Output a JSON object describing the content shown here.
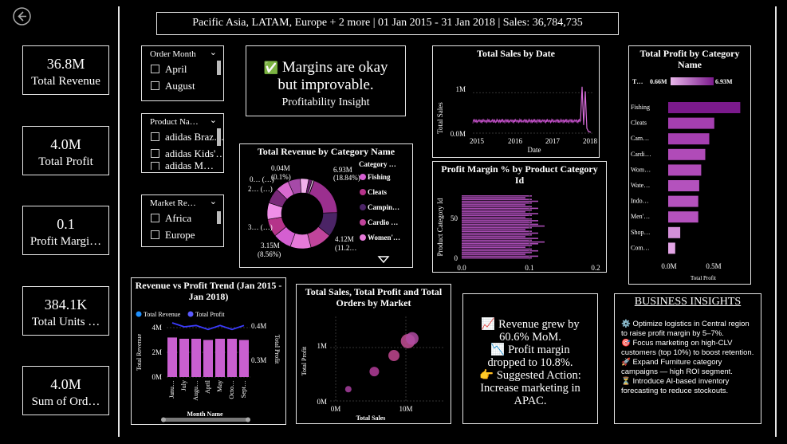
{
  "header": {
    "filter_text": "Pacific Asia, LATAM, Europe + 2 more | 01 Jan 2015 - 31 Jan 2018 | Sales: 36,784,735"
  },
  "back_icon": "circle-arrow-left-icon",
  "kpis": [
    {
      "value": "36.8M",
      "label": "Total Revenue"
    },
    {
      "value": "4.0M",
      "label": "Total Profit"
    },
    {
      "value": "0.1",
      "label": "Profit Margi…"
    },
    {
      "value": "384.1K",
      "label": "Total Units …"
    },
    {
      "value": "4.0M",
      "label": "Sum of Ord…"
    }
  ],
  "slicers": {
    "order_month": {
      "title": "Order Month",
      "items": [
        "April",
        "August"
      ]
    },
    "product_name": {
      "title": "Product Na…",
      "items": [
        "adidas Braz…",
        "adidas Kids'…",
        "adidas M…"
      ]
    },
    "market_region": {
      "title": "Market Re…",
      "items": [
        "Africa",
        "Europe"
      ]
    }
  },
  "insight_card": {
    "icon": "✅",
    "headline_line1": "Margins are okay",
    "headline_line2": "but improvable.",
    "subtitle": "Profitability Insight"
  },
  "sales_by_date": {
    "title": "Total Sales by Date",
    "xlabel": "Date",
    "ylabel": "Total Sales",
    "y_ticks": [
      "1M",
      "0.0M"
    ],
    "x_ticks": [
      "2015",
      "2016",
      "2017",
      "2018"
    ]
  },
  "profit_by_category": {
    "title": "Total Profit by Category Name",
    "legend_label": "T…",
    "legend_min": "0.66M",
    "legend_max": "6.93M",
    "xlabel": "Total Profit",
    "x_ticks": [
      "0.0M",
      "0.5M"
    ]
  },
  "revenue_by_category": {
    "title": "Total Revenue by Category Name",
    "legend_title": "Category …",
    "legend": [
      {
        "name": "Fishing",
        "color": "#d45fd1"
      },
      {
        "name": "Cleats",
        "color": "#b5338a"
      },
      {
        "name": "Campin…",
        "color": "#4b2466"
      },
      {
        "name": "Cardio …",
        "color": "#c0449b"
      },
      {
        "name": "Women'…",
        "color": "#e57ad8"
      }
    ],
    "labels": {
      "top_value": "6.93M",
      "top_pct": "(18.84%)",
      "right_value": "4.12M",
      "right_pct": "(11.2…",
      "bottom_value": "3.15M",
      "bottom_pct": "(8.56%)",
      "small_value": "0.04M",
      "small_pct": "(0.1%)",
      "left_a": "0… (…)",
      "left_b": "2… (…)",
      "left_c": "3… (…)"
    },
    "more_icon": "triangle-down-icon"
  },
  "margin_by_product": {
    "title": "Profit Margin % by Product Category Id",
    "ylabel": "Product Category Id",
    "y_ticks": [
      "50",
      "0"
    ],
    "x_ticks": [
      "0.0",
      "0.1",
      "0.2"
    ]
  },
  "trend": {
    "title": "Revenue vs Profit Trend (Jan 2015 - Jan 2018)",
    "legend": [
      {
        "name": "Total Revenue",
        "color": "#1e90ff"
      },
      {
        "name": "Total Profit",
        "color": "#5a5aff"
      }
    ],
    "ylabel_left": "Total Revenue",
    "ylabel_right": "Total Profit",
    "y_left_ticks": [
      "4M",
      "2M",
      "0M"
    ],
    "y_right_ticks": [
      "0.4M",
      "0.3M"
    ],
    "xlabel": "Month Name",
    "x_ticks": [
      "Janu…",
      "July",
      "Augu…",
      "April",
      "May",
      "Octo…",
      "Sept…"
    ]
  },
  "market_scatter": {
    "title": "Total Sales, Total Profit and Total Orders by Market",
    "xlabel": "Total Sales",
    "ylabel": "Total Profit",
    "x_ticks": [
      "0M",
      "10M"
    ],
    "y_ticks": [
      "1M",
      "0M"
    ]
  },
  "growth_card": {
    "lines": [
      "📈 Revenue grew by",
      "60.6% MoM.",
      "📉 Profit margin",
      "dropped to 10.8%.",
      "👉 Suggested Action:",
      "Increase marketing in",
      "APAC."
    ]
  },
  "business_insights": {
    "title": "BUSINESS INSIGHTS",
    "items": [
      "⚙️ Optimize logistics in Central region to raise profit margin by 5–7%.",
      "🎯 Focus marketing on high-CLV customers (top 10%) to boost retention.",
      "🚀 Expand Furniture category campaigns — high ROI segment.",
      "⏳ Introduce AI-based inventory forecasting to reduce stockouts."
    ]
  },
  "chart_data": [
    {
      "type": "line",
      "title": "Total Sales by Date",
      "x_range": [
        "2015-01",
        "2018-01"
      ],
      "ylim": [
        0,
        1500000
      ],
      "baseline_value": 300000,
      "spike_value": 1150000
    },
    {
      "type": "bar",
      "title": "Total Profit by Category Name",
      "orientation": "horizontal",
      "categories": [
        "Fishing",
        "Cleats",
        "Cam…",
        "Cardi…",
        "Wom…",
        "Wate…",
        "Indo…",
        "Men'…",
        "Shop…",
        "Com…"
      ],
      "values": [
        0.72,
        0.46,
        0.41,
        0.37,
        0.33,
        0.31,
        0.3,
        0.3,
        0.12,
        0.07
      ],
      "xlim": [
        0,
        0.9
      ],
      "colors": [
        "#7b1a8c",
        "#a53fb0",
        "#a53fb0",
        "#b04bb8",
        "#b04bb8",
        "#b452bd",
        "#b452bd",
        "#b452bd",
        "#d38fd8",
        "#e3a5e6"
      ]
    },
    {
      "type": "pie",
      "title": "Total Revenue by Category Name",
      "values": [
        6.93,
        4.12,
        3.7,
        3.5,
        3.15,
        3.0,
        2.8,
        2.6,
        2.3,
        2.1,
        1.4,
        0.6,
        0.3,
        0.04
      ],
      "colors": [
        "#9b2f8f",
        "#4b2466",
        "#c0449b",
        "#e57ad8",
        "#d45fd1",
        "#b5338a",
        "#f08fe8",
        "#7a2a7a",
        "#d96ad0",
        "#a64aa8",
        "#f2b0ec",
        "#6a1f6e",
        "#e8c0e8",
        "#ffffff"
      ]
    },
    {
      "type": "bar",
      "title": "Profit Margin % by Product Category Id",
      "orientation": "horizontal",
      "ylim": [
        0,
        76
      ],
      "xlim": [
        0,
        0.21
      ],
      "values": [
        0.11,
        0.1,
        0.11,
        0.12,
        0.11,
        0.1,
        0.11,
        0.12,
        0.11,
        0.1,
        0.12,
        0.11,
        0.1,
        0.11,
        0.12,
        0.11,
        0.12,
        0.13,
        0.11,
        0.1,
        0.11,
        0.12,
        0.11,
        0.1,
        0.12,
        0.11,
        0.13,
        0.12,
        0.11,
        0.1,
        0.11,
        0.12,
        0.11,
        0.1,
        0.12,
        0.11
      ]
    },
    {
      "type": "bar",
      "title": "Revenue vs Profit Trend (Jan 2015 - Jan 2018)",
      "categories": [
        "Janu…",
        "July",
        "Augu…",
        "April",
        "May",
        "Octo…",
        "Sept…"
      ],
      "series": [
        {
          "name": "Total Revenue",
          "values": [
            3.2,
            3.1,
            3.1,
            3.0,
            3.1,
            3.1,
            3.0
          ]
        },
        {
          "name": "Total Profit",
          "values": [
            0.37,
            0.355,
            0.36,
            0.345,
            0.36,
            0.345,
            0.36
          ]
        }
      ],
      "ylim": [
        0,
        4
      ],
      "y2lim": [
        0.25,
        0.4
      ]
    },
    {
      "type": "scatter",
      "title": "Total Sales, Total Profit and Total Orders by Market",
      "points": [
        {
          "x": 1.8,
          "y": 0.22,
          "size": 4
        },
        {
          "x": 5.5,
          "y": 0.55,
          "size": 6
        },
        {
          "x": 8.3,
          "y": 0.85,
          "size": 7
        },
        {
          "x": 10.3,
          "y": 1.12,
          "size": 9
        },
        {
          "x": 10.9,
          "y": 1.17,
          "size": 8
        }
      ],
      "xlim": [
        -2,
        14
      ],
      "ylim": [
        -0.05,
        1.45
      ]
    }
  ]
}
